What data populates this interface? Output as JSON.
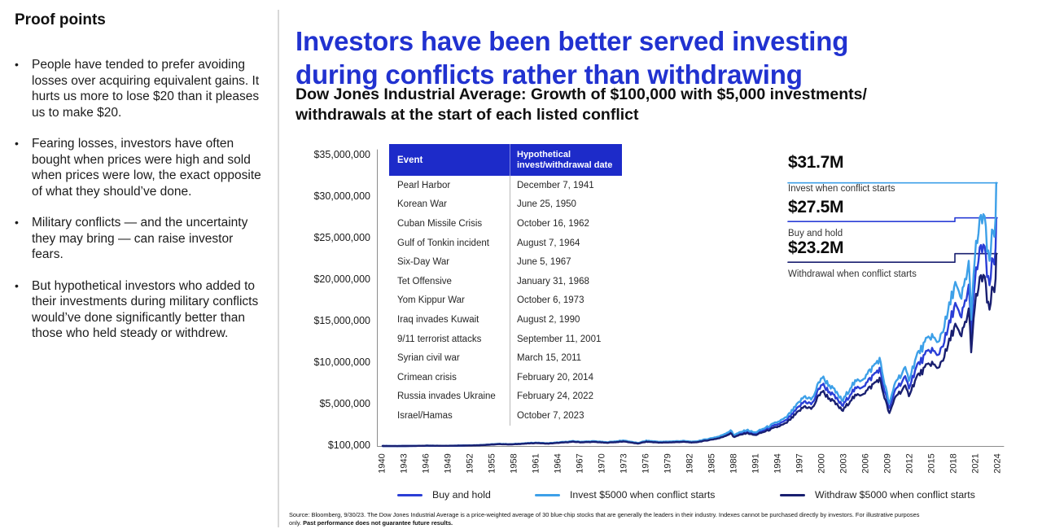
{
  "sidebar": {
    "title": "Proof points",
    "bullets": [
      "People have tended to prefer avoiding losses over acquiring equivalent gains. It hurts us more to lose $20 than it pleases us to make $20.",
      "Fearing losses, investors have often bought when prices were high and sold when prices were low, the exact opposite of what they should’ve done.",
      "Military conflicts — and the uncertainty they may bring — can raise investor fears.",
      "But hypothetical investors who added to their investments during military conflicts would’ve done significantly better than those who held steady or withdrew."
    ]
  },
  "header": {
    "title_line1": "Investors have been better served investing",
    "title_line2": "during conflicts rather than withdrawing",
    "subtitle_line1": "Dow Jones Industrial Average: Growth of $100,000 with $5,000 investments/",
    "subtitle_line2": "withdrawals at the start of each listed conflict",
    "title_color": "#2132d0"
  },
  "table": {
    "header_bg": "#1d2bc9",
    "headers": [
      "Event",
      "Hypothetical invest/withdrawal date"
    ],
    "rows": [
      [
        "Pearl Harbor",
        "December 7, 1941"
      ],
      [
        "Korean War",
        "June 25, 1950"
      ],
      [
        "Cuban Missile Crisis",
        "October 16, 1962"
      ],
      [
        "Gulf of Tonkin incident",
        "August 7, 1964"
      ],
      [
        "Six-Day War",
        "June 5, 1967"
      ],
      [
        "Tet Offensive",
        "January 31, 1968"
      ],
      [
        "Yom Kippur War",
        "October 6, 1973"
      ],
      [
        "Iraq invades Kuwait",
        "August 2, 1990"
      ],
      [
        "9/11 terrorist attacks",
        "September 11, 2001"
      ],
      [
        "Syrian civil war",
        "March 15, 2011"
      ],
      [
        "Crimean crisis",
        "February 20, 2014"
      ],
      [
        "Russia invades Ukraine",
        "February 24, 2022"
      ],
      [
        "Israel/Hamas",
        "October 7, 2023"
      ]
    ]
  },
  "annotations": [
    {
      "value": "$31.7M",
      "label": "Invest when conflict starts",
      "series_key": "invest"
    },
    {
      "value": "$27.5M",
      "label": "Buy and hold",
      "series_key": "buy-and-hold"
    },
    {
      "value": "$23.2M",
      "label": "Withdrawal when conflict starts",
      "series_key": "withdraw"
    }
  ],
  "footnote": {
    "line1": "Source: Bloomberg, 9/30/23. The Dow Jones Industrial Average is a price-weighted average of 30 blue-chip stocks that are generally the leaders in their industry. Indexes cannot be purchased directly by investors. For illustrative purposes",
    "line2_regular": "only. ",
    "line2_bold": "Past performance does not guarantee future results."
  },
  "chart_data": {
    "type": "line",
    "title": "Dow Jones Industrial Average: Growth of $100,000 with $5,000 investments/withdrawals at the start of each listed conflict",
    "x_range": [
      1940,
      2024
    ],
    "y_range_dollars": [
      100000,
      35000000
    ],
    "grid": false,
    "legend_position": "bottom",
    "y_tick_labels": [
      "$35,000,000",
      "$30,000,000",
      "$25,000,000",
      "$20,000,000",
      "$15,000,000",
      "$10,000,000",
      "$5,000,000",
      "$100,000"
    ],
    "x_tick_years": [
      1940,
      1943,
      1946,
      1949,
      1952,
      1955,
      1958,
      1961,
      1964,
      1967,
      1970,
      1973,
      1976,
      1979,
      1982,
      1985,
      1988,
      1991,
      1994,
      1997,
      2000,
      2003,
      2006,
      2009,
      2012,
      2015,
      2018,
      2021,
      2024
    ],
    "end_values_millions": {
      "invest": 31.7,
      "buy_and_hold": 27.5,
      "withdraw": 23.2
    },
    "series": [
      {
        "key": "buy-and-hold",
        "name": "Buy and hold",
        "color": "#2a3ed6",
        "anchors_year_valueMillions": [
          [
            1940,
            0.1
          ],
          [
            1942,
            0.088
          ],
          [
            1946,
            0.135
          ],
          [
            1949,
            0.125
          ],
          [
            1953,
            0.19
          ],
          [
            1956,
            0.34
          ],
          [
            1957.5,
            0.3
          ],
          [
            1961,
            0.48
          ],
          [
            1962.5,
            0.4
          ],
          [
            1966,
            0.64
          ],
          [
            1967,
            0.58
          ],
          [
            1969,
            0.63
          ],
          [
            1970.5,
            0.52
          ],
          [
            1973,
            0.7
          ],
          [
            1974.8,
            0.42
          ],
          [
            1976,
            0.67
          ],
          [
            1978,
            0.55
          ],
          [
            1981,
            0.65
          ],
          [
            1982.5,
            0.56
          ],
          [
            1984,
            0.8
          ],
          [
            1986,
            1.15
          ],
          [
            1987.6,
            1.8
          ],
          [
            1987.9,
            1.3
          ],
          [
            1989.7,
            1.85
          ],
          [
            1990.8,
            1.55
          ],
          [
            1993,
            2.35
          ],
          [
            1995,
            3.1
          ],
          [
            1996,
            4.0
          ],
          [
            1997.6,
            5.5
          ],
          [
            1998.6,
            5.1
          ],
          [
            1999.9,
            7.6
          ],
          [
            2001,
            6.6
          ],
          [
            2001.8,
            5.9
          ],
          [
            2002.8,
            4.9
          ],
          [
            2004,
            6.6
          ],
          [
            2006,
            7.6
          ],
          [
            2007.8,
            9.4
          ],
          [
            2008.9,
            5.4
          ],
          [
            2009.2,
            4.5
          ],
          [
            2010,
            7.0
          ],
          [
            2011.3,
            8.2
          ],
          [
            2011.8,
            7.2
          ],
          [
            2013,
            9.8
          ],
          [
            2014.9,
            11.8
          ],
          [
            2015.7,
            10.8
          ],
          [
            2017,
            13.5
          ],
          [
            2018.1,
            17.2
          ],
          [
            2018.9,
            15.2
          ],
          [
            2020.1,
            19.5
          ],
          [
            2020.25,
            13.0
          ],
          [
            2021,
            21.0
          ],
          [
            2021.6,
            23.5
          ],
          [
            2022.1,
            24.5
          ],
          [
            2022.5,
            20.5
          ],
          [
            2022.8,
            19.0
          ],
          [
            2023.1,
            21.5
          ],
          [
            2023.4,
            22.5
          ],
          [
            2023.6,
            21.0
          ],
          [
            2023.75,
            27.5
          ]
        ]
      },
      {
        "key": "invest",
        "name": "Invest $5000 when conflict starts",
        "color": "#3da0e8",
        "anchors_year_valueMillions": [
          [
            1940,
            0.1
          ],
          [
            1942,
            0.09
          ],
          [
            1946,
            0.139
          ],
          [
            1949,
            0.129
          ],
          [
            1953,
            0.198
          ],
          [
            1956,
            0.354
          ],
          [
            1957.5,
            0.312
          ],
          [
            1961,
            0.504
          ],
          [
            1962.5,
            0.42
          ],
          [
            1966,
            0.678
          ],
          [
            1967,
            0.615
          ],
          [
            1969,
            0.674
          ],
          [
            1970.5,
            0.556
          ],
          [
            1973,
            0.756
          ],
          [
            1974.8,
            0.458
          ],
          [
            1976,
            0.73
          ],
          [
            1978,
            0.6
          ],
          [
            1981,
            0.709
          ],
          [
            1982.5,
            0.61
          ],
          [
            1984,
            0.872
          ],
          [
            1986,
            1.259
          ],
          [
            1987.6,
            1.971
          ],
          [
            1987.9,
            1.424
          ],
          [
            1989.7,
            2.035
          ],
          [
            1990.8,
            1.705
          ],
          [
            1993,
            2.597
          ],
          [
            1995,
            3.432
          ],
          [
            1996,
            4.432
          ],
          [
            1997.6,
            6.105
          ],
          [
            1998.6,
            5.661
          ],
          [
            1999.9,
            8.451
          ],
          [
            2001,
            7.392
          ],
          [
            2001.8,
            6.608
          ],
          [
            2002.8,
            5.493
          ],
          [
            2004,
            7.405
          ],
          [
            2006,
            8.542
          ],
          [
            2007.8,
            10.584
          ],
          [
            2008.9,
            6.086
          ],
          [
            2009.2,
            5.076
          ],
          [
            2010,
            7.896
          ],
          [
            2011.3,
            9.266
          ],
          [
            2011.8,
            8.143
          ],
          [
            2013,
            11.103
          ],
          [
            2014.9,
            13.452
          ],
          [
            2015.7,
            12.323
          ],
          [
            2017,
            15.431
          ],
          [
            2018.1,
            19.694
          ],
          [
            2018.9,
            17.404
          ],
          [
            2020.1,
            22.367
          ],
          [
            2020.25,
            14.911
          ],
          [
            2021,
            24.108
          ],
          [
            2021.6,
            27.002
          ],
          [
            2022.1,
            28.175
          ],
          [
            2022.5,
            23.575
          ],
          [
            2022.8,
            21.869
          ],
          [
            2023.1,
            24.747
          ],
          [
            2023.4,
            25.92
          ],
          [
            2023.6,
            24.192
          ],
          [
            2023.75,
            31.7
          ]
        ]
      },
      {
        "key": "withdraw",
        "name": "Withdraw $5000 when conflict starts",
        "color": "#191f70",
        "anchors_year_valueMillions": [
          [
            1940,
            0.1
          ],
          [
            1942,
            0.087
          ],
          [
            1946,
            0.131
          ],
          [
            1949,
            0.121
          ],
          [
            1953,
            0.182
          ],
          [
            1956,
            0.326
          ],
          [
            1957.5,
            0.288
          ],
          [
            1961,
            0.456
          ],
          [
            1962.5,
            0.38
          ],
          [
            1966,
            0.602
          ],
          [
            1967,
            0.545
          ],
          [
            1969,
            0.586
          ],
          [
            1970.5,
            0.484
          ],
          [
            1973,
            0.644
          ],
          [
            1974.8,
            0.382
          ],
          [
            1976,
            0.61
          ],
          [
            1978,
            0.5
          ],
          [
            1981,
            0.592
          ],
          [
            1982.5,
            0.51
          ],
          [
            1984,
            0.724
          ],
          [
            1986,
            1.041
          ],
          [
            1987.6,
            1.625
          ],
          [
            1987.9,
            1.174
          ],
          [
            1989.7,
            1.665
          ],
          [
            1990.8,
            1.395
          ],
          [
            1993,
            2.103
          ],
          [
            1995,
            2.768
          ],
          [
            1996,
            3.568
          ],
          [
            1997.6,
            4.895
          ],
          [
            1998.6,
            4.539
          ],
          [
            1999.9,
            6.749
          ],
          [
            2001,
            5.808
          ],
          [
            2001.8,
            5.192
          ],
          [
            2002.8,
            4.307
          ],
          [
            2004,
            5.795
          ],
          [
            2006,
            6.658
          ],
          [
            2007.8,
            8.216
          ],
          [
            2008.9,
            4.714
          ],
          [
            2009.2,
            3.924
          ],
          [
            2010,
            6.104
          ],
          [
            2011.3,
            7.134
          ],
          [
            2011.8,
            6.257
          ],
          [
            2013,
            8.497
          ],
          [
            2014.9,
            10.148
          ],
          [
            2015.7,
            9.277
          ],
          [
            2017,
            11.57
          ],
          [
            2018.1,
            14.706
          ],
          [
            2018.9,
            12.996
          ],
          [
            2020.1,
            16.634
          ],
          [
            2020.25,
            11.089
          ],
          [
            2021,
            17.892
          ],
          [
            2021.6,
            20.0
          ],
          [
            2022.1,
            20.825
          ],
          [
            2022.5,
            17.425
          ],
          [
            2022.8,
            16.131
          ],
          [
            2023.1,
            18.254
          ],
          [
            2023.4,
            19.08
          ],
          [
            2023.6,
            17.808
          ],
          [
            2023.75,
            23.2
          ]
        ]
      }
    ]
  }
}
